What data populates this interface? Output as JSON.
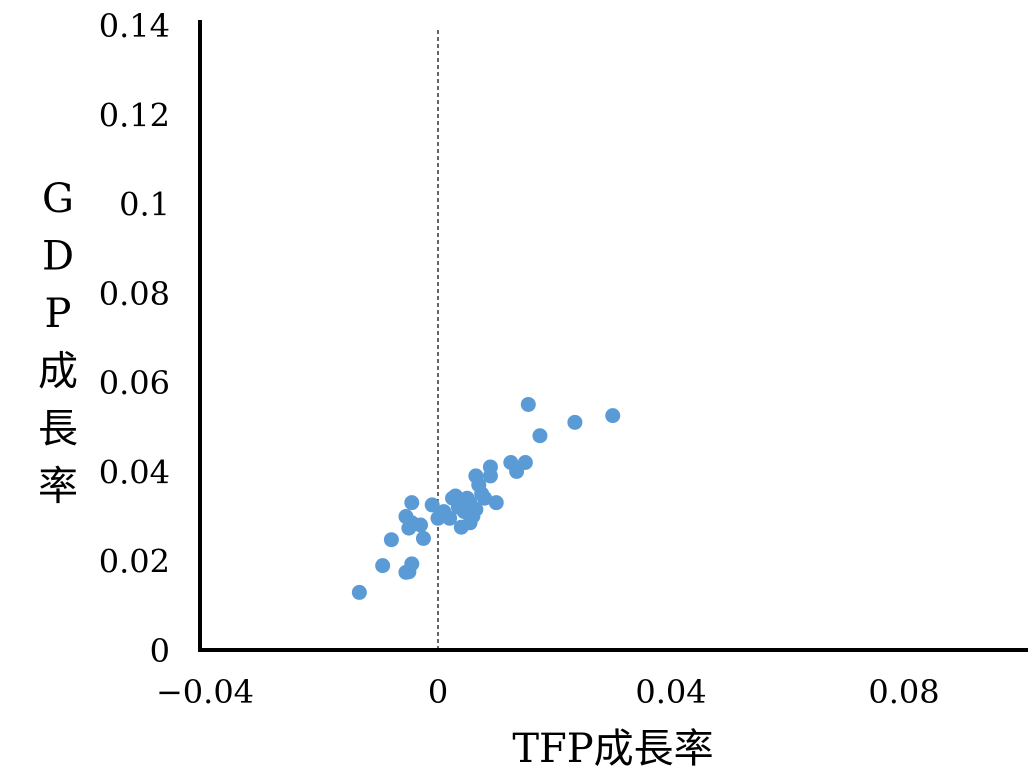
{
  "chart_data": {
    "type": "scatter",
    "title": "",
    "xlabel": "TFP成長率",
    "ylabel": "GDP成長率",
    "xlim": [
      -0.04,
      0.1
    ],
    "ylim": [
      0,
      0.14
    ],
    "x_ticks": [
      -0.04,
      0,
      0.04,
      0.08
    ],
    "x_tick_labels": [
      "−0.04",
      "0",
      "0.04",
      "0.08"
    ],
    "y_ticks": [
      0,
      0.02,
      0.04,
      0.06,
      0.08,
      0.1,
      0.12,
      0.14
    ],
    "y_tick_labels": [
      "0",
      "0.02",
      "0.04",
      "0.06",
      "0.08",
      "0.1",
      "0.12",
      "0.14"
    ],
    "grid": false,
    "legend": "none",
    "reference_line": {
      "axis": "x",
      "value": 0,
      "style": "dashed"
    },
    "marker_color": "#5B9BD5",
    "series": [
      {
        "points": [
          [
            -0.0135,
            0.0129
          ],
          [
            -0.0095,
            0.0189
          ],
          [
            -0.008,
            0.0247
          ],
          [
            -0.0055,
            0.0174
          ],
          [
            -0.005,
            0.0175
          ],
          [
            -0.0045,
            0.0193
          ],
          [
            -0.0055,
            0.0299
          ],
          [
            -0.005,
            0.0273
          ],
          [
            -0.0045,
            0.0285
          ],
          [
            -0.0045,
            0.033
          ],
          [
            -0.003,
            0.028
          ],
          [
            -0.0025,
            0.025
          ],
          [
            -0.001,
            0.0325
          ],
          [
            0.0,
            0.0295
          ],
          [
            0.001,
            0.031
          ],
          [
            0.002,
            0.0295
          ],
          [
            0.0025,
            0.034
          ],
          [
            0.003,
            0.0345
          ],
          [
            0.0035,
            0.032
          ],
          [
            0.004,
            0.0275
          ],
          [
            0.0045,
            0.031
          ],
          [
            0.005,
            0.034
          ],
          [
            0.0055,
            0.0285
          ],
          [
            0.0055,
            0.033
          ],
          [
            0.006,
            0.03
          ],
          [
            0.0065,
            0.0315
          ],
          [
            0.0065,
            0.039
          ],
          [
            0.007,
            0.037
          ],
          [
            0.0075,
            0.035
          ],
          [
            0.008,
            0.034
          ],
          [
            0.009,
            0.039
          ],
          [
            0.009,
            0.041
          ],
          [
            0.01,
            0.033
          ],
          [
            0.0125,
            0.042
          ],
          [
            0.0135,
            0.04
          ],
          [
            0.015,
            0.042
          ],
          [
            0.0155,
            0.055
          ],
          [
            0.0175,
            0.048
          ],
          [
            0.0235,
            0.051
          ],
          [
            0.03,
            0.0525
          ]
        ]
      }
    ]
  }
}
